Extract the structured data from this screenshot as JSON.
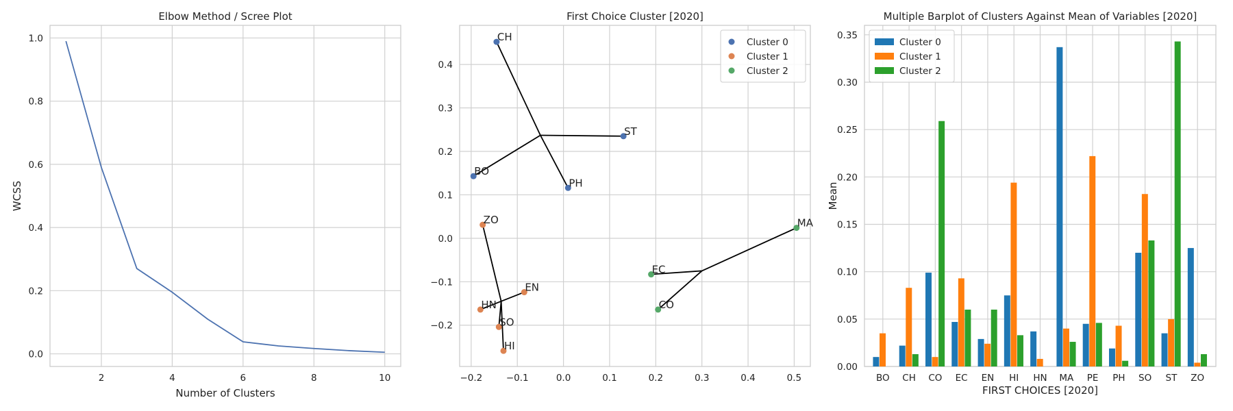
{
  "chart_data": [
    {
      "type": "line",
      "title": "Elbow Method / Scree Plot",
      "xlabel": "Number of Clusters",
      "ylabel": "WCSS",
      "xlim": [
        0.55,
        10.45
      ],
      "ylim": [
        -0.04,
        1.04
      ],
      "xticks": [
        "2",
        "4",
        "6",
        "8",
        "10"
      ],
      "yticks": [
        "0.0",
        "0.2",
        "0.4",
        "0.6",
        "0.8",
        "1.0"
      ],
      "grid": true,
      "color": "#4c72b0",
      "x": [
        1,
        2,
        3,
        4,
        5,
        6,
        7,
        8,
        9,
        10
      ],
      "y": [
        0.99,
        0.59,
        0.27,
        0.195,
        0.11,
        0.038,
        0.025,
        0.017,
        0.01,
        0.005
      ]
    },
    {
      "type": "scatter",
      "title": "First Choice Cluster [2020]",
      "xlabel": "",
      "ylabel": "",
      "xlim": [
        -0.225,
        0.535
      ],
      "ylim": [
        -0.295,
        0.49
      ],
      "xticks": [
        "−0.2",
        "−0.1",
        "0.0",
        "0.1",
        "0.2",
        "0.3",
        "0.4",
        "0.5"
      ],
      "yticks": [
        "−0.2",
        "−0.1",
        "0.0",
        "0.1",
        "0.2",
        "0.3",
        "0.4"
      ],
      "grid": true,
      "legend": "top-right",
      "series": [
        {
          "name": "Cluster 0",
          "color": "#4c72b0",
          "centroid": [
            -0.05,
            0.237
          ],
          "points": [
            {
              "label": "CH",
              "x": -0.145,
              "y": 0.452
            },
            {
              "label": "ST",
              "x": 0.13,
              "y": 0.235
            },
            {
              "label": "BO",
              "x": -0.195,
              "y": 0.143
            },
            {
              "label": "PH",
              "x": 0.01,
              "y": 0.116
            }
          ]
        },
        {
          "name": "Cluster 1",
          "color": "#dd8452",
          "centroid": [
            -0.135,
            -0.145
          ],
          "points": [
            {
              "label": "ZO",
              "x": -0.175,
              "y": 0.031
            },
            {
              "label": "EN",
              "x": -0.085,
              "y": -0.124
            },
            {
              "label": "HN",
              "x": -0.18,
              "y": -0.164
            },
            {
              "label": "SO",
              "x": -0.14,
              "y": -0.204
            },
            {
              "label": "HI",
              "x": -0.13,
              "y": -0.259
            }
          ]
        },
        {
          "name": "Cluster 2",
          "color": "#55a868",
          "centroid": [
            0.3,
            -0.075
          ],
          "points": [
            {
              "label": "MA",
              "x": 0.505,
              "y": 0.024
            },
            {
              "label": "EC",
              "x": 0.19,
              "y": -0.083
            },
            {
              "label": "CO",
              "x": 0.205,
              "y": -0.164
            }
          ]
        }
      ]
    },
    {
      "type": "bar",
      "title": "Multiple Barplot of Clusters Against Mean of Variables [2020]",
      "xlabel": "FIRST CHOICES [2020]",
      "ylabel": "Mean",
      "ylim": [
        0,
        0.36
      ],
      "yticks": [
        "0.00",
        "0.05",
        "0.10",
        "0.15",
        "0.20",
        "0.25",
        "0.30",
        "0.35"
      ],
      "grid": true,
      "legend": "top-left",
      "categories": [
        "BO",
        "CH",
        "CO",
        "EC",
        "EN",
        "HI",
        "HN",
        "MA",
        "PE",
        "PH",
        "SO",
        "ST",
        "ZO"
      ],
      "series": [
        {
          "name": "Cluster 0",
          "color": "#1f77b4",
          "values": [
            0.01,
            0.022,
            0.099,
            0.047,
            0.029,
            0.075,
            0.037,
            0.337,
            0.045,
            0.019,
            0.12,
            0.035,
            0.125
          ]
        },
        {
          "name": "Cluster 1",
          "color": "#ff7f0e",
          "values": [
            0.035,
            0.083,
            0.01,
            0.093,
            0.024,
            0.194,
            0.008,
            0.04,
            0.222,
            0.043,
            0.182,
            0.05,
            0.004
          ]
        },
        {
          "name": "Cluster 2",
          "color": "#2ca02c",
          "values": [
            0,
            0.013,
            0.259,
            0.06,
            0.06,
            0.033,
            0,
            0.026,
            0.046,
            0.006,
            0.133,
            0.343,
            0.013
          ]
        }
      ]
    }
  ]
}
